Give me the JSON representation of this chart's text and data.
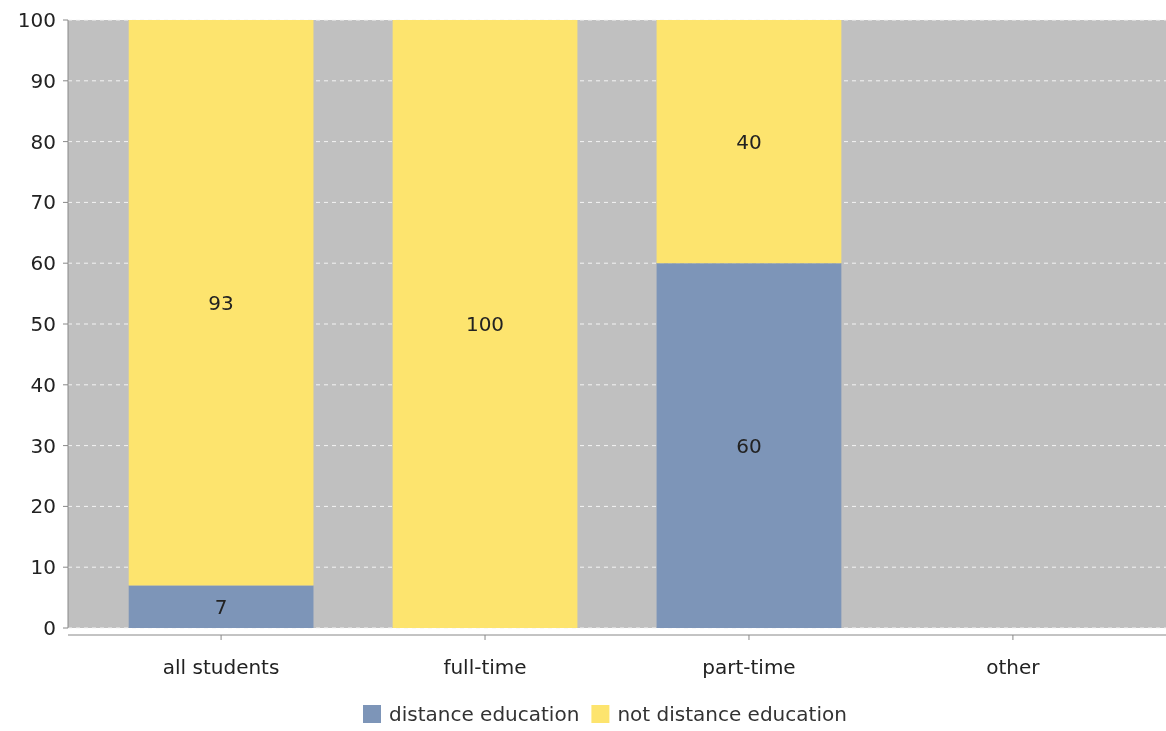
{
  "chart_data": {
    "type": "bar",
    "stacked": true,
    "categories": [
      "all students",
      "full-time",
      "part-time",
      "other"
    ],
    "series": [
      {
        "name": "distance education",
        "color": "#7d95b8",
        "values": [
          7,
          0,
          60,
          null
        ],
        "value_labels": [
          "7",
          null,
          "60",
          null
        ]
      },
      {
        "name": "not distance education",
        "color": "#fde46e",
        "values": [
          93,
          100,
          40,
          null
        ],
        "value_labels": [
          "93",
          "100",
          "40",
          null
        ]
      }
    ],
    "ylim": [
      0,
      100
    ],
    "yticks": [
      0,
      10,
      20,
      30,
      40,
      50,
      60,
      70,
      80,
      90,
      100
    ],
    "grid": "y",
    "legend": "bottom"
  }
}
